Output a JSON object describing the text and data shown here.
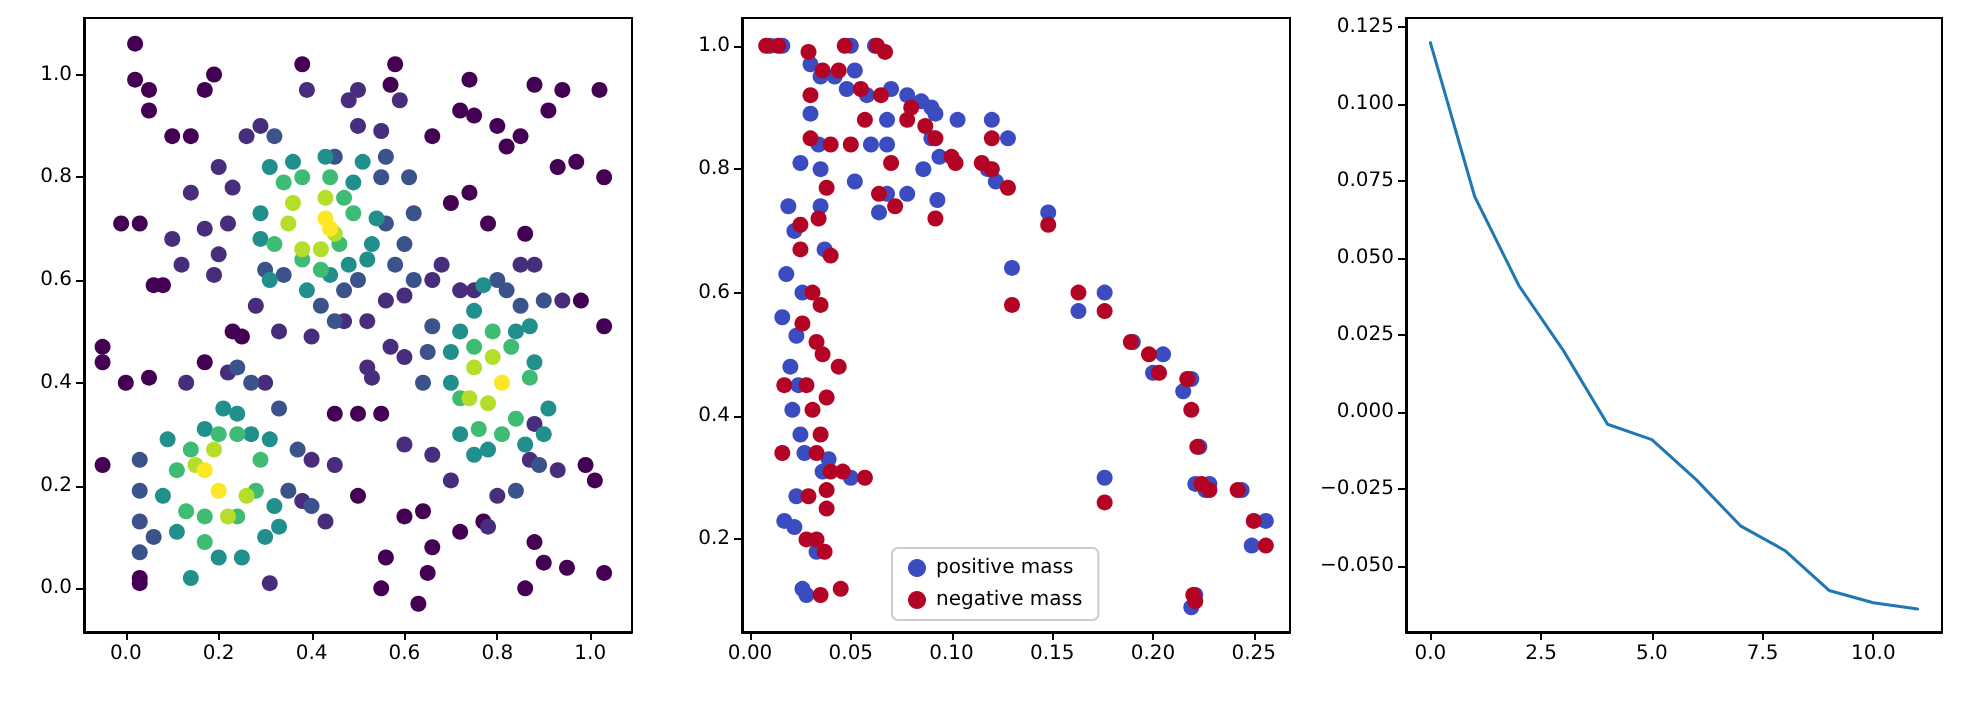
{
  "chart_data": [
    {
      "type": "scatter",
      "marker": "circle",
      "xlim": [
        -0.09,
        1.09
      ],
      "ylim": [
        -0.085,
        1.11
      ],
      "xticks": [
        {
          "value": 0,
          "label": "0.0"
        },
        {
          "value": 0.2,
          "label": "0.2"
        },
        {
          "value": 0.4,
          "label": "0.4"
        },
        {
          "value": 0.6,
          "label": "0.6"
        },
        {
          "value": 0.8,
          "label": "0.8"
        },
        {
          "value": 1,
          "label": "1.0"
        }
      ],
      "yticks": [
        {
          "value": 0,
          "label": "0.0"
        },
        {
          "value": 0.2,
          "label": "0.2"
        },
        {
          "value": 0.4,
          "label": "0.4"
        },
        {
          "value": 0.6,
          "label": "0.6"
        },
        {
          "value": 0.8,
          "label": "0.8"
        },
        {
          "value": 1,
          "label": "1.0"
        }
      ],
      "series": [
        {
          "color": "#440154",
          "x": [
            0.02,
            0.02,
            0.05,
            0.05,
            0.17,
            0.19,
            0.38,
            0.58,
            0.57,
            0.74,
            0.88,
            0.94,
            1.02,
            0.75,
            0.8,
            0.85,
            0.91,
            0.93,
            0.97,
            1.03,
            0.72,
            0.82,
            0.66,
            0.1,
            0.14,
            -0.01,
            0.03,
            0.06,
            0.08,
            -0.05,
            -0.05,
            0,
            0.05,
            -0.05,
            0.03,
            0.03,
            0.63,
            0.55,
            0.56,
            0.65,
            0.66,
            0.72,
            0.86,
            0.9,
            0.95,
            1.03,
            0.88,
            0.77,
            0.5,
            0.45,
            0.5,
            0.55,
            0.64,
            0.6,
            0.86,
            0.78,
            0.7,
            0.74,
            0.25,
            0.23,
            0.17,
            0.98,
            1.03,
            0.99,
            1.01
          ],
          "values": [
            1.06,
            0.99,
            0.97,
            0.93,
            0.97,
            1,
            1.02,
            1.02,
            0.98,
            0.99,
            0.98,
            0.97,
            0.97,
            0.92,
            0.9,
            0.88,
            0.93,
            0.82,
            0.83,
            0.8,
            0.93,
            0.86,
            0.88,
            0.88,
            0.88,
            0.71,
            0.71,
            0.59,
            0.59,
            0.47,
            0.44,
            0.4,
            0.41,
            0.24,
            0.01,
            0.02,
            -0.03,
            0,
            0.06,
            0.03,
            0.08,
            0.11,
            0,
            0.05,
            0.04,
            0.03,
            0.09,
            0.13,
            0.18,
            0.34,
            0.34,
            0.34,
            0.15,
            0.14,
            0.69,
            0.71,
            0.75,
            0.77,
            0.49,
            0.5,
            0.44,
            0.56,
            0.51,
            0.24,
            0.21
          ]
        },
        {
          "color": "#472d7b",
          "x": [
            0.26,
            0.29,
            0.39,
            0.5,
            0.48,
            0.59,
            0.55,
            0.5,
            0.2,
            0.23,
            0.14,
            0.17,
            0.22,
            0.1,
            0.12,
            0.2,
            0.19,
            0.28,
            0.33,
            0.4,
            0.47,
            0.52,
            0.53,
            0.57,
            0.52,
            0.6,
            0.68,
            0.72,
            0.75,
            0.85,
            0.88,
            0.94,
            0.3,
            0.22,
            0.13,
            0.4,
            0.45,
            0.38,
            0.66,
            0.7,
            0.6,
            0.8,
            0.78,
            0.87,
            0.93,
            0.88,
            0.31,
            0.43,
            0.66,
            0.56,
            0.6
          ],
          "values": [
            0.88,
            0.9,
            0.97,
            0.97,
            0.95,
            0.95,
            0.89,
            0.9,
            0.82,
            0.78,
            0.77,
            0.7,
            0.71,
            0.68,
            0.63,
            0.65,
            0.61,
            0.55,
            0.5,
            0.49,
            0.52,
            0.43,
            0.41,
            0.47,
            0.52,
            0.45,
            0.63,
            0.58,
            0.58,
            0.63,
            0.63,
            0.56,
            0.4,
            0.42,
            0.4,
            0.25,
            0.24,
            0.17,
            0.26,
            0.21,
            0.28,
            0.18,
            0.12,
            0.25,
            0.23,
            0.32,
            0.01,
            0.13,
            0.6,
            0.56,
            0.57
          ]
        },
        {
          "color": "#3b528b",
          "x": [
            0.32,
            0.45,
            0.55,
            0.56,
            0.61,
            0.56,
            0.6,
            0.62,
            0.58,
            0.62,
            0.5,
            0.47,
            0.42,
            0.45,
            0.34,
            0.3,
            0.64,
            0.65,
            0.66,
            0.8,
            0.82,
            0.85,
            0.9,
            0.24,
            0.27,
            0.33,
            0.37,
            0.35,
            0.4,
            0.03,
            0.03,
            0.03,
            0.03,
            0.06,
            0.89,
            0.84
          ],
          "values": [
            0.88,
            0.84,
            0.8,
            0.84,
            0.8,
            0.71,
            0.67,
            0.73,
            0.63,
            0.6,
            0.6,
            0.58,
            0.55,
            0.52,
            0.61,
            0.62,
            0.4,
            0.46,
            0.51,
            0.6,
            0.58,
            0.55,
            0.56,
            0.43,
            0.4,
            0.35,
            0.27,
            0.19,
            0.16,
            0.25,
            0.19,
            0.13,
            0.07,
            0.1,
            0.24,
            0.19
          ]
        },
        {
          "color": "#21908d",
          "x": [
            0.31,
            0.36,
            0.43,
            0.49,
            0.51,
            0.54,
            0.53,
            0.29,
            0.29,
            0.31,
            0.39,
            0.44,
            0.48,
            0.52,
            0.7,
            0.7,
            0.72,
            0.75,
            0.77,
            0.84,
            0.87,
            0.88,
            0.91,
            0.9,
            0.86,
            0.72,
            0.75,
            0.78,
            0.24,
            0.27,
            0.31,
            0.09,
            0.08,
            0.11,
            0.14,
            0.2,
            0.25,
            0.3,
            0.33,
            0.32,
            0.17,
            0.21
          ],
          "values": [
            0.82,
            0.83,
            0.84,
            0.79,
            0.83,
            0.72,
            0.67,
            0.73,
            0.68,
            0.6,
            0.58,
            0.61,
            0.63,
            0.64,
            0.4,
            0.46,
            0.5,
            0.54,
            0.59,
            0.5,
            0.51,
            0.44,
            0.35,
            0.3,
            0.28,
            0.3,
            0.26,
            0.27,
            0.34,
            0.3,
            0.29,
            0.29,
            0.18,
            0.11,
            0.02,
            0.06,
            0.06,
            0.1,
            0.12,
            0.16,
            0.31,
            0.35
          ]
        },
        {
          "color": "#3fbc73",
          "x": [
            0.34,
            0.38,
            0.44,
            0.47,
            0.49,
            0.46,
            0.42,
            0.38,
            0.32,
            0.75,
            0.79,
            0.83,
            0.87,
            0.84,
            0.81,
            0.76,
            0.72,
            0.2,
            0.24,
            0.29,
            0.28,
            0.24,
            0.17,
            0.13,
            0.11,
            0.14,
            0.17
          ],
          "values": [
            0.79,
            0.8,
            0.8,
            0.76,
            0.73,
            0.67,
            0.62,
            0.64,
            0.67,
            0.47,
            0.5,
            0.47,
            0.41,
            0.33,
            0.3,
            0.31,
            0.37,
            0.3,
            0.3,
            0.25,
            0.19,
            0.14,
            0.14,
            0.15,
            0.23,
            0.27,
            0.09
          ]
        },
        {
          "color": "#b5de2b",
          "x": [
            0.36,
            0.43,
            0.35,
            0.38,
            0.42,
            0.45,
            0.75,
            0.79,
            0.74,
            0.78,
            0.15,
            0.19,
            0.22,
            0.26
          ],
          "values": [
            0.75,
            0.76,
            0.71,
            0.66,
            0.66,
            0.69,
            0.43,
            0.45,
            0.37,
            0.36,
            0.24,
            0.27,
            0.14,
            0.18
          ]
        },
        {
          "color": "#fde725",
          "x": [
            0.43,
            0.44,
            0.81,
            0.17,
            0.2
          ],
          "values": [
            0.72,
            0.7,
            0.4,
            0.23,
            0.19
          ]
        }
      ]
    },
    {
      "type": "scatter",
      "marker": "circle",
      "legend": "bottom",
      "xlim": [
        -0.004,
        0.268
      ],
      "ylim": [
        0.05,
        1.045
      ],
      "xticks": [
        {
          "value": 0,
          "label": "0.00"
        },
        {
          "value": 0.05,
          "label": "0.05"
        },
        {
          "value": 0.1,
          "label": "0.10"
        },
        {
          "value": 0.15,
          "label": "0.15"
        },
        {
          "value": 0.2,
          "label": "0.20"
        },
        {
          "value": 0.25,
          "label": "0.25"
        }
      ],
      "yticks": [
        {
          "value": 0.2,
          "label": "0.2"
        },
        {
          "value": 0.4,
          "label": "0.4"
        },
        {
          "value": 0.6,
          "label": "0.6"
        },
        {
          "value": 0.8,
          "label": "0.8"
        },
        {
          "value": 1,
          "label": "1.0"
        }
      ],
      "series": [
        {
          "name": "positive mass",
          "color": "#3b4cc0",
          "x": [
            0.01,
            0.016,
            0.03,
            0.035,
            0.042,
            0.048,
            0.052,
            0.062,
            0.05,
            0.058,
            0.07,
            0.078,
            0.085,
            0.09,
            0.092,
            0.068,
            0.09,
            0.103,
            0.12,
            0.128,
            0.06,
            0.068,
            0.03,
            0.034,
            0.025,
            0.035,
            0.052,
            0.094,
            0.086,
            0.118,
            0.122,
            0.064,
            0.068,
            0.078,
            0.093,
            0.019,
            0.022,
            0.035,
            0.037,
            0.018,
            0.026,
            0.016,
            0.023,
            0.02,
            0.024,
            0.021,
            0.025,
            0.027,
            0.039,
            0.036,
            0.05,
            0.023,
            0.017,
            0.022,
            0.033,
            0.028,
            0.026,
            0.13,
            0.148,
            0.163,
            0.176,
            0.176,
            0.19,
            0.2,
            0.205,
            0.215,
            0.219,
            0.223,
            0.221,
            0.226,
            0.228,
            0.244,
            0.249,
            0.256,
            0.221,
            0.219
          ],
          "values": [
            1,
            1,
            0.97,
            0.95,
            0.95,
            0.93,
            0.96,
            1,
            1,
            0.92,
            0.93,
            0.92,
            0.91,
            0.9,
            0.89,
            0.88,
            0.85,
            0.88,
            0.88,
            0.85,
            0.84,
            0.84,
            0.89,
            0.84,
            0.81,
            0.8,
            0.78,
            0.82,
            0.8,
            0.8,
            0.78,
            0.73,
            0.76,
            0.76,
            0.75,
            0.74,
            0.7,
            0.74,
            0.67,
            0.63,
            0.6,
            0.56,
            0.53,
            0.48,
            0.45,
            0.41,
            0.37,
            0.34,
            0.33,
            0.31,
            0.3,
            0.27,
            0.23,
            0.22,
            0.18,
            0.11,
            0.12,
            0.64,
            0.73,
            0.57,
            0.6,
            0.3,
            0.52,
            0.47,
            0.5,
            0.44,
            0.46,
            0.35,
            0.29,
            0.28,
            0.29,
            0.28,
            0.19,
            0.23,
            0.11,
            0.09
          ]
        },
        {
          "name": "negative mass",
          "color": "#b40426",
          "x": [
            0.008,
            0.014,
            0.029,
            0.036,
            0.044,
            0.047,
            0.063,
            0.067,
            0.055,
            0.065,
            0.08,
            0.087,
            0.092,
            0.078,
            0.057,
            0.03,
            0.03,
            0.04,
            0.05,
            0.12,
            0.1,
            0.102,
            0.115,
            0.12,
            0.128,
            0.07,
            0.072,
            0.064,
            0.092,
            0.038,
            0.034,
            0.025,
            0.04,
            0.025,
            0.031,
            0.035,
            0.026,
            0.033,
            0.036,
            0.044,
            0.017,
            0.028,
            0.038,
            0.031,
            0.035,
            0.016,
            0.033,
            0.04,
            0.046,
            0.057,
            0.029,
            0.038,
            0.038,
            0.028,
            0.033,
            0.037,
            0.035,
            0.045,
            0.13,
            0.148,
            0.163,
            0.176,
            0.176,
            0.189,
            0.198,
            0.203,
            0.217,
            0.219,
            0.222,
            0.224,
            0.228,
            0.242,
            0.25,
            0.256,
            0.22,
            0.221
          ],
          "values": [
            1,
            1,
            0.99,
            0.96,
            0.96,
            1,
            1,
            0.99,
            0.93,
            0.92,
            0.9,
            0.87,
            0.85,
            0.88,
            0.88,
            0.92,
            0.85,
            0.84,
            0.84,
            0.85,
            0.82,
            0.81,
            0.81,
            0.8,
            0.77,
            0.81,
            0.74,
            0.76,
            0.72,
            0.77,
            0.72,
            0.71,
            0.66,
            0.67,
            0.6,
            0.58,
            0.55,
            0.52,
            0.5,
            0.48,
            0.45,
            0.45,
            0.43,
            0.41,
            0.37,
            0.34,
            0.34,
            0.31,
            0.31,
            0.3,
            0.27,
            0.28,
            0.25,
            0.2,
            0.2,
            0.18,
            0.11,
            0.12,
            0.58,
            0.71,
            0.6,
            0.57,
            0.26,
            0.52,
            0.5,
            0.47,
            0.46,
            0.41,
            0.35,
            0.29,
            0.28,
            0.28,
            0.23,
            0.19,
            0.11,
            0.1
          ]
        }
      ]
    },
    {
      "type": "line",
      "x": [
        0,
        1,
        2,
        3,
        4,
        5,
        6,
        7,
        8,
        9,
        10,
        11
      ],
      "xlim": [
        -0.55,
        11.55
      ],
      "ylim": [
        -0.0715,
        0.128
      ],
      "xticks": [
        {
          "value": 0,
          "label": "0.0"
        },
        {
          "value": 2.5,
          "label": "2.5"
        },
        {
          "value": 5,
          "label": "5.0"
        },
        {
          "value": 7.5,
          "label": "7.5"
        },
        {
          "value": 10,
          "label": "10.0"
        }
      ],
      "yticks": [
        {
          "value": -0.05,
          "label": "−0.050"
        },
        {
          "value": -0.025,
          "label": "−0.025"
        },
        {
          "value": 0,
          "label": "0.000"
        },
        {
          "value": 0.025,
          "label": "0.025"
        },
        {
          "value": 0.05,
          "label": "0.050"
        },
        {
          "value": 0.075,
          "label": "0.075"
        },
        {
          "value": 0.1,
          "label": "0.100"
        },
        {
          "value": 0.125,
          "label": "0.125"
        }
      ],
      "series": [
        {
          "color": "#1f77b4",
          "values": [
            0.12,
            0.07,
            0.041,
            0.02,
            -0.004,
            -0.009,
            -0.022,
            -0.037,
            -0.045,
            -0.058,
            -0.062,
            -0.064
          ]
        }
      ]
    }
  ]
}
